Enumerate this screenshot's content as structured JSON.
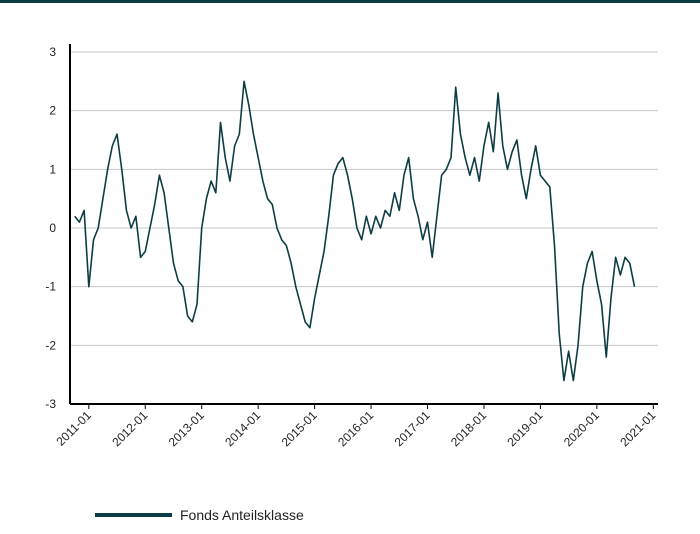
{
  "chart_data": {
    "type": "line",
    "color": "#0d3d44",
    "grid": true,
    "legend": "bottom",
    "xlim": [
      "2010-09",
      "2021-02"
    ],
    "xticks": [
      "2011-01",
      "2012-01",
      "2013-01",
      "2014-01",
      "2015-01",
      "2016-01",
      "2017-01",
      "2018-01",
      "2019-01",
      "2020-01",
      "2021-01"
    ],
    "ylim": [
      -3,
      3
    ],
    "yticks": [
      -3,
      -2,
      -1,
      0,
      1,
      2,
      3
    ],
    "x": [
      "2010-10",
      "2010-11",
      "2010-12",
      "2011-01",
      "2011-02",
      "2011-03",
      "2011-04",
      "2011-05",
      "2011-06",
      "2011-07",
      "2011-08",
      "2011-09",
      "2011-10",
      "2011-11",
      "2011-12",
      "2012-01",
      "2012-02",
      "2012-03",
      "2012-04",
      "2012-05",
      "2012-06",
      "2012-07",
      "2012-08",
      "2012-09",
      "2012-10",
      "2012-11",
      "2012-12",
      "2013-01",
      "2013-02",
      "2013-03",
      "2013-04",
      "2013-05",
      "2013-06",
      "2013-07",
      "2013-08",
      "2013-09",
      "2013-10",
      "2013-11",
      "2013-12",
      "2014-01",
      "2014-02",
      "2014-03",
      "2014-04",
      "2014-05",
      "2014-06",
      "2014-07",
      "2014-08",
      "2014-09",
      "2014-10",
      "2014-11",
      "2014-12",
      "2015-01",
      "2015-02",
      "2015-03",
      "2015-04",
      "2015-05",
      "2015-06",
      "2015-07",
      "2015-08",
      "2015-09",
      "2015-10",
      "2015-11",
      "2015-12",
      "2016-01",
      "2016-02",
      "2016-03",
      "2016-04",
      "2016-05",
      "2016-06",
      "2016-07",
      "2016-08",
      "2016-09",
      "2016-10",
      "2016-11",
      "2016-12",
      "2017-01",
      "2017-02",
      "2017-03",
      "2017-04",
      "2017-05",
      "2017-06",
      "2017-07",
      "2017-08",
      "2017-09",
      "2017-10",
      "2017-11",
      "2017-12",
      "2018-01",
      "2018-02",
      "2018-03",
      "2018-04",
      "2018-05",
      "2018-06",
      "2018-07",
      "2018-08",
      "2018-09",
      "2018-10",
      "2018-11",
      "2018-12",
      "2019-01",
      "2019-02",
      "2019-03",
      "2019-04",
      "2019-05",
      "2019-06",
      "2019-07",
      "2019-08",
      "2019-09",
      "2019-10",
      "2019-11",
      "2019-12",
      "2020-01",
      "2020-02",
      "2020-03",
      "2020-04",
      "2020-05",
      "2020-06",
      "2020-07",
      "2020-08",
      "2020-09"
    ],
    "series": [
      {
        "name": "Fonds Anteilsklasse",
        "color": "#0d3d44",
        "values": [
          0.2,
          0.1,
          0.3,
          -1.0,
          -0.2,
          0.0,
          0.5,
          1.0,
          1.4,
          1.6,
          1.0,
          0.3,
          0.0,
          0.2,
          -0.5,
          -0.4,
          0.0,
          0.4,
          0.9,
          0.6,
          0.0,
          -0.6,
          -0.9,
          -1.0,
          -1.5,
          -1.6,
          -1.3,
          0.0,
          0.5,
          0.8,
          0.6,
          1.8,
          1.2,
          0.8,
          1.4,
          1.6,
          2.5,
          2.1,
          1.6,
          1.2,
          0.8,
          0.5,
          0.4,
          0.0,
          -0.2,
          -0.3,
          -0.6,
          -1.0,
          -1.3,
          -1.6,
          -1.7,
          -1.2,
          -0.8,
          -0.4,
          0.2,
          0.9,
          1.1,
          1.2,
          0.9,
          0.5,
          0.0,
          -0.2,
          0.2,
          -0.1,
          0.2,
          0.0,
          0.3,
          0.2,
          0.6,
          0.3,
          0.9,
          1.2,
          0.5,
          0.2,
          -0.2,
          0.1,
          -0.5,
          0.2,
          0.9,
          1.0,
          1.2,
          2.4,
          1.6,
          1.2,
          0.9,
          1.2,
          0.8,
          1.4,
          1.8,
          1.3,
          2.3,
          1.4,
          1.0,
          1.3,
          1.5,
          0.9,
          0.5,
          1.0,
          1.4,
          0.9,
          0.8,
          0.7,
          -0.3,
          -1.8,
          -2.6,
          -2.1,
          -2.6,
          -2.0,
          -1.0,
          -0.6,
          -0.4,
          -0.9,
          -1.3,
          -2.2,
          -1.2,
          -0.5,
          -0.8,
          -0.5,
          -0.6,
          -1.0
        ]
      }
    ]
  }
}
